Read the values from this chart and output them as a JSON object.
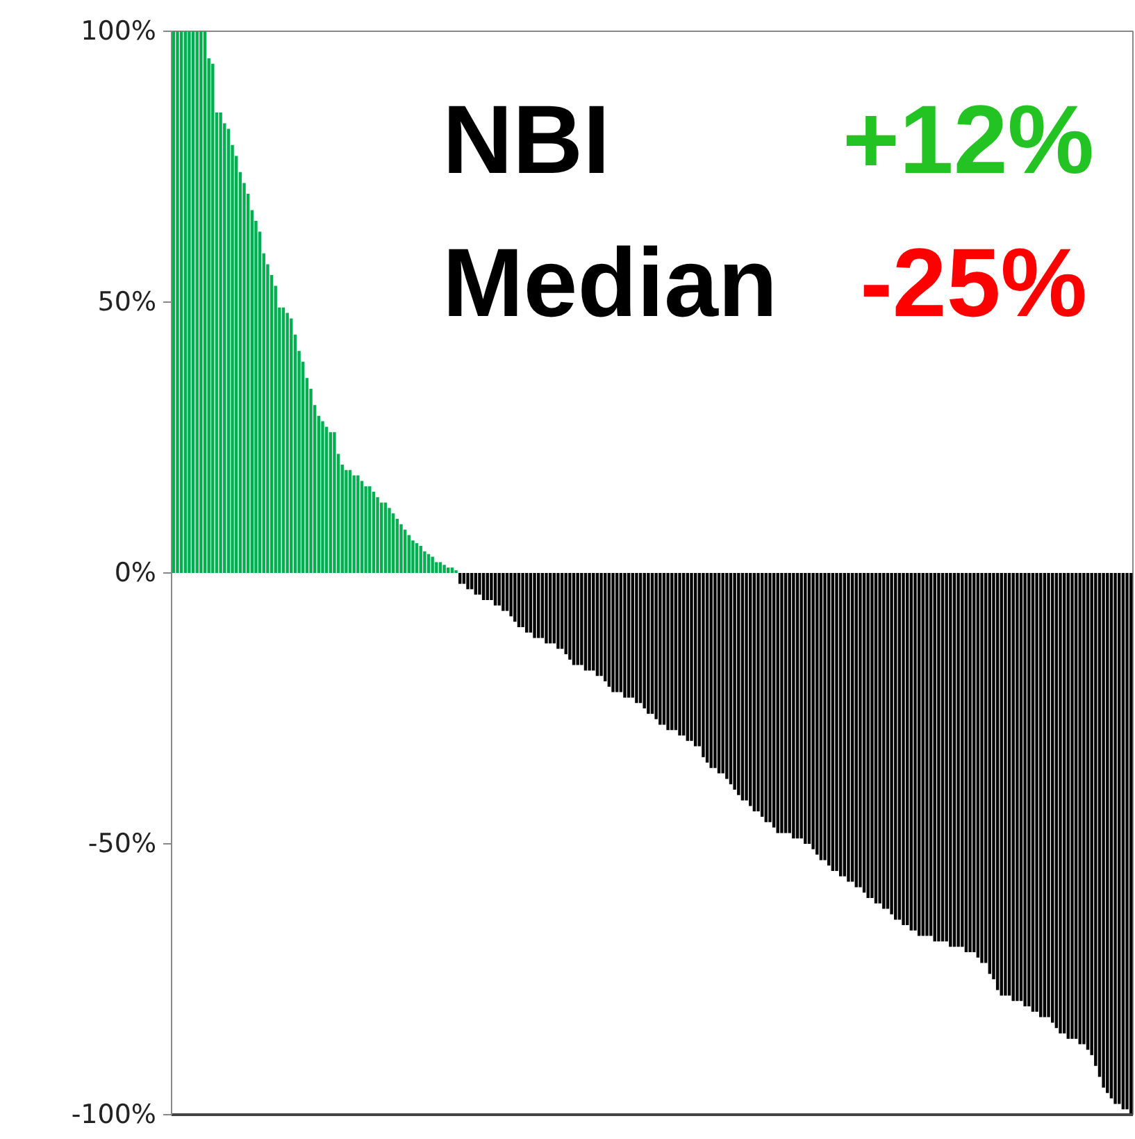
{
  "chart_data": {
    "type": "bar",
    "categories": [
      null,
      null,
      null,
      null,
      null,
      null,
      null,
      null,
      null,
      null,
      null,
      null,
      null,
      null,
      null,
      null,
      null,
      null,
      null,
      null,
      null,
      null,
      null,
      null,
      null,
      null,
      null,
      null,
      null,
      null,
      null,
      null,
      null,
      null,
      null,
      null,
      null,
      null,
      null,
      null,
      null,
      null,
      null,
      null,
      null,
      null,
      null,
      null,
      null,
      null,
      null,
      null,
      null,
      null,
      null,
      null,
      null,
      null,
      null,
      null,
      null,
      null,
      null,
      null,
      null,
      null,
      null,
      null,
      null,
      null,
      null,
      null,
      null,
      null,
      null,
      null,
      null,
      null,
      null,
      null,
      null,
      null,
      null,
      null,
      null,
      null,
      null,
      null,
      null,
      null,
      null,
      null,
      null,
      null,
      null,
      null,
      null,
      null,
      null,
      null,
      null,
      null,
      null,
      null,
      null,
      null,
      null,
      null,
      null,
      null,
      null,
      null,
      null,
      null,
      null,
      null,
      null,
      null,
      null,
      null,
      null,
      null,
      null,
      null,
      null,
      null,
      null,
      null,
      null,
      null,
      null,
      null,
      null,
      null,
      null,
      null,
      null,
      null,
      null,
      null,
      null,
      null,
      null,
      null,
      null,
      null,
      null,
      null,
      null,
      null,
      null,
      null,
      null,
      null,
      null,
      null,
      null,
      null,
      null,
      null,
      null,
      null,
      null,
      null,
      null,
      null,
      null,
      null,
      null,
      null,
      null,
      null,
      null,
      null,
      null,
      null,
      null,
      null,
      null,
      null,
      null,
      null,
      null,
      null,
      null,
      null,
      null,
      null,
      null,
      null,
      null,
      null,
      null,
      null,
      null,
      null,
      null,
      null,
      null,
      null,
      null,
      null,
      null,
      null,
      null,
      null,
      null,
      null,
      null,
      null,
      null,
      null,
      null,
      null,
      null,
      null,
      null,
      null,
      null,
      null,
      null,
      null,
      null,
      null,
      null,
      null,
      null,
      null,
      null,
      null,
      null,
      null,
      null,
      null,
      null,
      null,
      null,
      null,
      null,
      null,
      null,
      null,
      null,
      null,
      null
    ],
    "values": [
      100,
      100,
      100,
      100,
      100,
      100,
      100,
      100,
      100,
      95,
      94,
      85,
      85,
      83,
      82,
      79,
      77,
      74,
      72,
      70,
      67,
      65,
      63,
      59,
      57,
      55,
      53,
      49,
      49,
      48,
      47,
      44,
      41,
      39,
      36,
      34,
      31,
      29,
      28,
      27,
      26,
      26,
      22,
      20,
      19,
      19,
      18,
      18,
      17,
      16,
      16,
      15,
      14,
      13,
      13,
      12,
      11,
      10,
      9,
      8,
      7,
      6,
      5.5,
      5,
      4,
      3.5,
      3,
      2,
      2,
      1.5,
      1,
      1,
      0.5,
      -2,
      -2,
      -3,
      -3,
      -4,
      -4,
      -5,
      -5,
      -5,
      -6,
      -6,
      -7,
      -7,
      -8,
      -9,
      -10,
      -10,
      -11,
      -11,
      -12,
      -12,
      -12,
      -13,
      -13,
      -13,
      -14,
      -14,
      -15,
      -16,
      -17,
      -17,
      -17,
      -18,
      -18,
      -18,
      -19,
      -19,
      -20,
      -21,
      -22,
      -22,
      -22,
      -23,
      -23,
      -23,
      -24,
      -24,
      -25,
      -26,
      -26,
      -27,
      -28,
      -28,
      -29,
      -29,
      -29,
      -30,
      -30,
      -31,
      -31,
      -32,
      -32,
      -34,
      -35,
      -36,
      -36,
      -37,
      -37,
      -38,
      -39,
      -40,
      -41,
      -42,
      -42,
      -43,
      -44,
      -44,
      -45,
      -46,
      -46,
      -47,
      -48,
      -48,
      -48,
      -48,
      -49,
      -49,
      -49,
      -50,
      -50,
      -51,
      -52,
      -53,
      -53,
      -54,
      -55,
      -55,
      -56,
      -56,
      -57,
      -57,
      -58,
      -58,
      -59,
      -60,
      -60,
      -61,
      -61,
      -62,
      -62,
      -63,
      -64,
      -64,
      -65,
      -65,
      -66,
      -66,
      -67,
      -67,
      -67,
      -67,
      -68,
      -68,
      -68,
      -68,
      -69,
      -69,
      -69,
      -69,
      -70,
      -70,
      -70,
      -71,
      -72,
      -72,
      -74,
      -75,
      -77,
      -78,
      -78,
      -78,
      -79,
      -79,
      -79,
      -80,
      -80,
      -81,
      -81,
      -82,
      -82,
      -82,
      -83,
      -84,
      -85,
      -85,
      -86,
      -86,
      -86,
      -87,
      -87,
      -88,
      -89,
      -91,
      -93,
      -95,
      -96,
      -97,
      -98,
      -98,
      -99,
      -99,
      -100
    ],
    "colors": [
      "#00b050",
      "#00b050",
      "#00b050",
      "#00b050",
      "#00b050",
      "#00b050",
      "#00b050",
      "#00b050",
      "#00b050",
      "#00b050",
      "#00b050",
      "#00b050",
      "#00b050",
      "#00b050",
      "#00b050",
      "#00b050",
      "#00b050",
      "#00b050",
      "#00b050",
      "#00b050",
      "#00b050",
      "#00b050",
      "#00b050",
      "#00b050",
      "#00b050",
      "#00b050",
      "#00b050",
      "#00b050",
      "#00b050",
      "#00b050",
      "#00b050",
      "#00b050",
      "#00b050",
      "#00b050",
      "#00b050",
      "#00b050",
      "#00b050",
      "#00b050",
      "#00b050",
      "#00b050",
      "#00b050",
      "#00b050",
      "#00b050",
      "#00b050",
      "#00b050",
      "#00b050",
      "#00b050",
      "#00b050",
      "#00b050",
      "#00b050",
      "#00b050",
      "#00b050",
      "#00b050",
      "#00b050",
      "#00b050",
      "#00b050",
      "#00b050",
      "#00b050",
      "#00b050",
      "#00b050",
      "#00b050",
      "#00b050",
      "#00b050",
      "#00b050",
      "#00b050",
      "#00b050",
      "#00b050",
      "#00b050",
      "#00b050",
      "#00b050",
      "#00b050",
      "#00b050",
      "#00b050",
      "#000000",
      "#000000",
      "#000000",
      "#000000",
      "#000000",
      "#000000",
      "#000000",
      "#000000",
      "#000000",
      "#000000",
      "#000000",
      "#000000",
      "#000000",
      "#000000",
      "#000000",
      "#000000",
      "#000000",
      "#000000",
      "#000000",
      "#000000",
      "#000000",
      "#000000",
      "#000000",
      "#000000",
      "#000000",
      "#000000",
      "#000000",
      "#000000",
      "#000000",
      "#000000",
      "#000000",
      "#000000",
      "#000000",
      "#000000",
      "#000000",
      "#000000",
      "#000000",
      "#000000",
      "#000000",
      "#000000",
      "#000000",
      "#000000",
      "#000000",
      "#000000",
      "#000000",
      "#000000",
      "#000000",
      "#000000",
      "#000000",
      "#000000",
      "#000000",
      "#000000",
      "#000000",
      "#000000",
      "#000000",
      "#000000",
      "#000000",
      "#000000",
      "#000000",
      "#000000",
      "#000000",
      "#000000",
      "#000000",
      "#000000",
      "#000000",
      "#000000",
      "#000000",
      "#000000",
      "#000000",
      "#000000",
      "#000000",
      "#000000",
      "#000000",
      "#000000",
      "#000000",
      "#000000",
      "#000000",
      "#000000",
      "#000000",
      "#000000",
      "#000000",
      "#000000",
      "#000000",
      "#000000",
      "#000000",
      "#000000",
      "#000000",
      "#000000",
      "#000000",
      "#000000",
      "#000000",
      "#000000",
      "#000000",
      "#000000",
      "#000000",
      "#000000",
      "#000000",
      "#000000",
      "#000000",
      "#000000",
      "#000000",
      "#000000",
      "#000000",
      "#000000",
      "#000000",
      "#000000",
      "#000000",
      "#000000",
      "#000000",
      "#000000",
      "#000000",
      "#000000",
      "#000000",
      "#000000",
      "#000000",
      "#000000",
      "#000000",
      "#000000",
      "#000000",
      "#000000",
      "#000000",
      "#000000",
      "#000000",
      "#000000",
      "#000000",
      "#000000",
      "#000000",
      "#000000",
      "#000000",
      "#000000",
      "#000000",
      "#000000",
      "#000000",
      "#000000",
      "#000000",
      "#000000",
      "#000000",
      "#000000",
      "#000000",
      "#000000",
      "#000000",
      "#000000",
      "#000000",
      "#000000",
      "#000000",
      "#000000",
      "#000000",
      "#000000",
      "#000000",
      "#000000",
      "#000000",
      "#000000",
      "#000000",
      "#000000",
      "#000000",
      "#000000",
      "#000000",
      "#000000",
      "#000000",
      "#000000",
      "#000000",
      "#000000",
      "#000000",
      "#000000",
      "#000000",
      "#000000",
      "#000000",
      "#000000",
      "#000000",
      "#000000",
      "#000000",
      "#000000"
    ],
    "ylim": [
      -100,
      100
    ],
    "yticks": [
      {
        "value": -100,
        "label": "-100%"
      },
      {
        "value": -50,
        "label": "-50%"
      },
      {
        "value": 0,
        "label": "0%"
      },
      {
        "value": 50,
        "label": "50%"
      },
      {
        "value": 100,
        "label": "100%"
      }
    ],
    "annotations": [
      "NBI",
      "+12%",
      "Median",
      "-25%"
    ],
    "tick_labels": "y",
    "grid": false
  }
}
